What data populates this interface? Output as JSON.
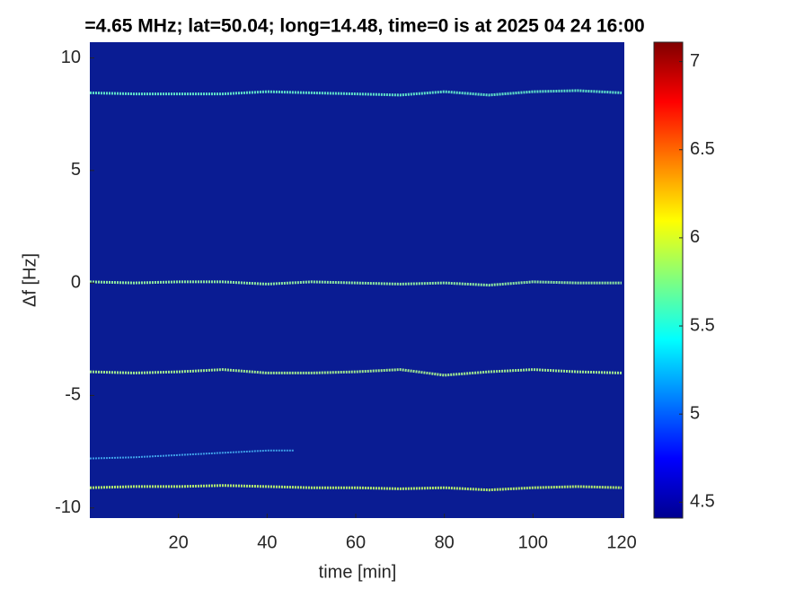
{
  "chart_data": {
    "type": "spectrogram",
    "title": "=4.65 MHz;  lat=50.04; long=14.48, time=0 is at 2025 04 24 16:00",
    "x_label": "time [min]",
    "y_label": "Δf [Hz]",
    "xlim": [
      0,
      120.6
    ],
    "ylim": [
      -10.45,
      10.7
    ],
    "xticks": [
      20,
      40,
      60,
      80,
      100,
      120
    ],
    "yticks": [
      -10,
      -5,
      0,
      5,
      10
    ],
    "clim": [
      4.41,
      7.11
    ],
    "cticks": [
      4.5,
      5,
      5.5,
      6,
      6.5,
      7
    ],
    "background": "#0a1c93",
    "traces": [
      {
        "color": "#5fe0c8",
        "x": [
          0,
          10,
          20,
          30,
          40,
          50,
          60,
          70,
          80,
          90,
          100,
          110,
          120
        ],
        "values": [
          8.45,
          8.4,
          8.4,
          8.4,
          8.5,
          8.45,
          8.4,
          8.35,
          8.5,
          8.35,
          8.5,
          8.55,
          8.45
        ]
      },
      {
        "color": "#8fe8a0",
        "x": [
          0,
          10,
          20,
          30,
          40,
          50,
          60,
          70,
          80,
          90,
          100,
          110,
          120
        ],
        "values": [
          0.05,
          0,
          0.05,
          0.05,
          -0.05,
          0.05,
          0,
          -0.05,
          0,
          -0.1,
          0.05,
          0,
          0
        ]
      },
      {
        "color": "#a0e890",
        "x": [
          0,
          10,
          20,
          30,
          40,
          50,
          60,
          70,
          80,
          90,
          100,
          110,
          120
        ],
        "values": [
          -3.95,
          -4,
          -3.95,
          -3.85,
          -4,
          -4,
          -3.95,
          -3.85,
          -4.1,
          -3.95,
          -3.85,
          -3.95,
          -4
        ]
      },
      {
        "color": "#3fa0e8",
        "x": [
          0,
          10,
          20,
          30,
          40,
          46
        ],
        "values": [
          -7.8,
          -7.75,
          -7.65,
          -7.55,
          -7.45,
          -7.45
        ]
      },
      {
        "color": "#b0e870",
        "x": [
          0,
          10,
          20,
          30,
          40,
          50,
          60,
          70,
          80,
          90,
          100,
          110,
          120
        ],
        "values": [
          -9.1,
          -9.05,
          -9.05,
          -9.0,
          -9.05,
          -9.1,
          -9.1,
          -9.15,
          -9.1,
          -9.2,
          -9.1,
          -9.05,
          -9.1
        ]
      }
    ]
  }
}
